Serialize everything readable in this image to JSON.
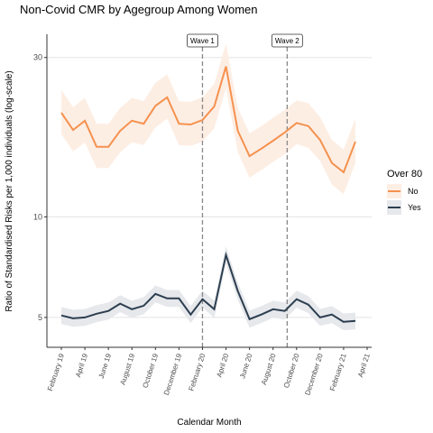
{
  "chart_data": {
    "type": "line",
    "title": "Non-Covid CMR by Agegroup Among Women",
    "xlabel": "Calendar Month",
    "ylabel": "Ratio of Standardised Risks per 1,000 individuals (log-scale)",
    "log_y": true,
    "grid": true,
    "legend_title": "Over 80",
    "categories": [
      "February 19",
      null,
      "April 19",
      null,
      "June 19",
      null,
      "August 19",
      null,
      "October 19",
      null,
      "December 19",
      null,
      "February 20",
      null,
      "April 20",
      null,
      "June 20",
      null,
      "August 20",
      null,
      "October 20",
      null,
      "December 20",
      null,
      "February 21",
      null,
      "April 21"
    ],
    "ylim": [
      4.07,
      35.2
    ],
    "yticks": [
      5,
      10,
      30
    ],
    "annotations": [
      {
        "label": "Wave 1",
        "x": 12
      },
      {
        "label": "Wave 2",
        "x": 19.2
      }
    ],
    "series": [
      {
        "name": "No",
        "color": "#f5914e",
        "band_color": "#fdeee4",
        "values": [
          20.5,
          18.2,
          19.4,
          16.2,
          16.2,
          18.1,
          19.4,
          19.0,
          21.5,
          22.8,
          19.0,
          18.9,
          19.5,
          21.4,
          28.2,
          18.1,
          15.2,
          16.0,
          16.9,
          17.9,
          19.1,
          18.7,
          17.0,
          14.5,
          13.6,
          16.8,
          null
        ],
        "upper": [
          24.0,
          21.3,
          22.7,
          19.0,
          19.0,
          21.2,
          22.7,
          22.2,
          25.2,
          26.7,
          22.2,
          22.1,
          22.8,
          25.0,
          33.0,
          21.2,
          17.8,
          18.7,
          19.8,
          20.9,
          22.3,
          21.9,
          19.9,
          17.0,
          15.9,
          19.7,
          null
        ],
        "lower": [
          17.7,
          15.7,
          16.7,
          14.0,
          14.0,
          15.6,
          16.7,
          16.4,
          18.5,
          19.7,
          16.4,
          16.3,
          16.8,
          18.4,
          24.3,
          15.6,
          13.1,
          13.8,
          14.6,
          15.4,
          16.5,
          16.1,
          14.7,
          12.5,
          11.7,
          14.5,
          null
        ]
      },
      {
        "name": "Yes",
        "color": "#2c3e50",
        "band_color": "#e6e8eb",
        "values": [
          5.07,
          4.97,
          5.0,
          5.13,
          5.23,
          5.5,
          5.29,
          5.42,
          5.88,
          5.7,
          5.7,
          5.1,
          5.67,
          5.29,
          7.69,
          6.0,
          4.94,
          5.1,
          5.29,
          5.23,
          5.67,
          5.46,
          5.0,
          5.1,
          4.85,
          4.88,
          null
        ],
        "upper": [
          5.37,
          5.27,
          5.3,
          5.44,
          5.54,
          5.83,
          5.61,
          5.75,
          6.23,
          6.04,
          6.04,
          5.41,
          6.01,
          5.61,
          8.15,
          6.36,
          5.24,
          5.41,
          5.61,
          5.54,
          6.01,
          5.79,
          5.3,
          5.41,
          5.14,
          5.17,
          null
        ],
        "lower": [
          4.78,
          4.69,
          4.72,
          4.84,
          4.93,
          5.19,
          4.99,
          5.11,
          5.55,
          5.38,
          5.38,
          4.81,
          5.35,
          4.99,
          7.25,
          5.66,
          4.66,
          4.81,
          4.99,
          4.93,
          5.35,
          5.15,
          4.72,
          4.81,
          4.58,
          4.6,
          null
        ]
      }
    ]
  }
}
